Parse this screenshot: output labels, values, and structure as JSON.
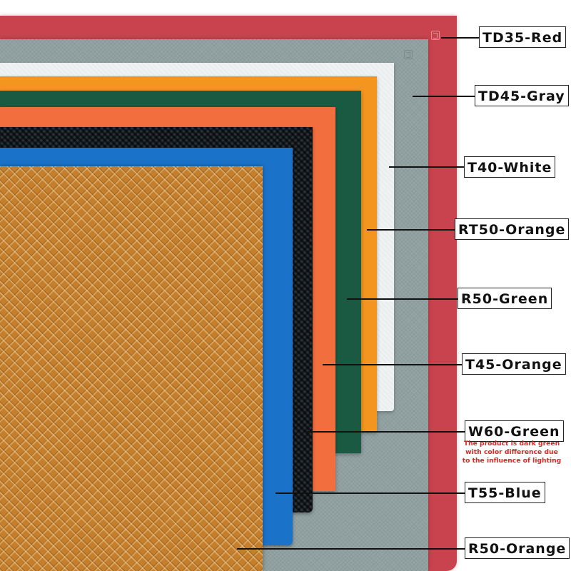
{
  "image": {
    "subject": "rubber sheet color samples",
    "colors": {
      "red": "#c9434e",
      "gray": "#94a3a4",
      "white": "#eef2f3",
      "yellow_orange": "#f3951f",
      "green": "#1b5a42",
      "orange": "#f26e3e",
      "black": "#1d2127",
      "blue": "#1b73c9",
      "brown_orange": "#c57f2c",
      "note_red": "#e32424"
    }
  },
  "labels": {
    "td35_red": "TD35-Red",
    "td45_gray": "TD45-Gray",
    "t40_white": "T40-White",
    "rt50_orange": "RT50-Orange",
    "r50_green": "R50-Green",
    "t45_orange": "T45-Orange",
    "w60_green": "W60-Green",
    "t55_blue": "T55-Blue",
    "r50_orange": "R50-Orange"
  },
  "note": {
    "line1": "The product is dark green",
    "line2": "with color difference due",
    "line3": "to the influence of lighting"
  }
}
